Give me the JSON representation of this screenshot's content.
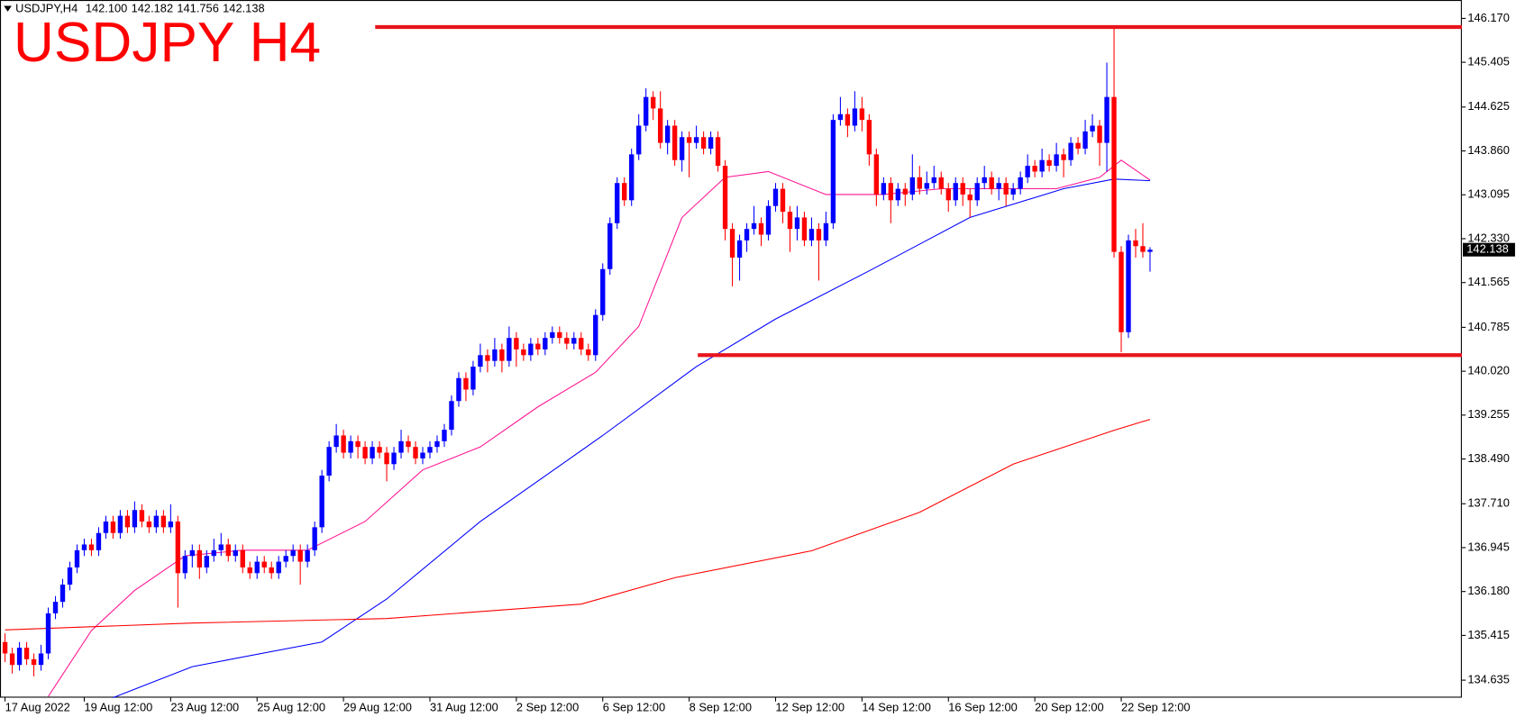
{
  "chart_data": {
    "type": "candlestick",
    "title": "USDJPY H4",
    "symbol": "USDJPY,H4",
    "last_bar": {
      "values": [
        142.1,
        142.182,
        141.756,
        142.138
      ],
      "value_labels": [
        "142.100",
        "142.182",
        "141.756",
        "142.138"
      ]
    },
    "up_color": "#0000ff",
    "down_color": "#ff0000",
    "xlim": [
      -0.7,
      202.3
    ],
    "ylim": [
      134.33,
      146.49
    ],
    "yticks": [
      {
        "value": 146.17,
        "label": "146.170"
      },
      {
        "value": 145.405,
        "label": "145.405"
      },
      {
        "value": 144.625,
        "label": "144.625"
      },
      {
        "value": 143.86,
        "label": "143.860"
      },
      {
        "value": 143.095,
        "label": "143.095"
      },
      {
        "value": 142.33,
        "label": "142.330"
      },
      {
        "value": 141.565,
        "label": "141.565"
      },
      {
        "value": 140.785,
        "label": "140.785"
      },
      {
        "value": 140.02,
        "label": "140.020"
      },
      {
        "value": 139.255,
        "label": "139.255"
      },
      {
        "value": 138.49,
        "label": "138.490"
      },
      {
        "value": 137.71,
        "label": "137.710"
      },
      {
        "value": 136.945,
        "label": "136.945"
      },
      {
        "value": 136.18,
        "label": "136.180"
      },
      {
        "value": 135.415,
        "label": "135.415"
      },
      {
        "value": 134.635,
        "label": "134.635"
      }
    ],
    "xticks": [
      {
        "value": 0,
        "label": "17 Aug 2022"
      },
      {
        "value": 11,
        "label": "19 Aug 12:00"
      },
      {
        "value": 23,
        "label": "23 Aug 12:00"
      },
      {
        "value": 35,
        "label": "25 Aug 12:00"
      },
      {
        "value": 47,
        "label": "29 Aug 12:00"
      },
      {
        "value": 59,
        "label": "31 Aug 12:00"
      },
      {
        "value": 71,
        "label": "2 Sep 12:00"
      },
      {
        "value": 83,
        "label": "6 Sep 12:00"
      },
      {
        "value": 95,
        "label": "8 Sep 12:00"
      },
      {
        "value": 107,
        "label": "12 Sep 12:00"
      },
      {
        "value": 119,
        "label": "14 Sep 12:00"
      },
      {
        "value": 131,
        "label": "16 Sep 12:00"
      },
      {
        "value": 143,
        "label": "20 Sep 12:00"
      },
      {
        "value": 155,
        "label": "22 Sep 12:00"
      }
    ],
    "candles": [
      [
        135.3,
        135.45,
        134.95,
        135.1
      ],
      [
        135.1,
        135.2,
        134.75,
        134.9
      ],
      [
        134.9,
        135.3,
        134.8,
        135.2
      ],
      [
        135.2,
        135.3,
        134.9,
        135.0
      ],
      [
        135.0,
        135.1,
        134.7,
        134.9
      ],
      [
        134.9,
        135.25,
        134.8,
        135.1
      ],
      [
        135.1,
        135.9,
        135.0,
        135.8
      ],
      [
        135.8,
        136.1,
        135.7,
        136.0
      ],
      [
        136.0,
        136.4,
        135.9,
        136.3
      ],
      [
        136.3,
        136.7,
        136.2,
        136.6
      ],
      [
        136.6,
        137.0,
        136.5,
        136.9
      ],
      [
        136.9,
        137.1,
        136.8,
        137.0
      ],
      [
        137.0,
        137.1,
        136.8,
        136.9
      ],
      [
        136.9,
        137.3,
        136.8,
        137.2
      ],
      [
        137.2,
        137.5,
        137.1,
        137.4
      ],
      [
        137.4,
        137.5,
        137.1,
        137.2
      ],
      [
        137.2,
        137.6,
        137.1,
        137.5
      ],
      [
        137.5,
        137.6,
        137.2,
        137.3
      ],
      [
        137.3,
        137.75,
        137.2,
        137.6
      ],
      [
        137.6,
        137.7,
        137.3,
        137.4
      ],
      [
        137.4,
        137.5,
        137.2,
        137.3
      ],
      [
        137.3,
        137.6,
        137.2,
        137.5
      ],
      [
        137.5,
        137.6,
        137.2,
        137.3
      ],
      [
        137.3,
        137.7,
        137.2,
        137.4
      ],
      [
        137.4,
        137.5,
        135.9,
        136.5
      ],
      [
        136.5,
        136.9,
        136.4,
        136.8
      ],
      [
        136.8,
        137.0,
        136.6,
        136.9
      ],
      [
        136.9,
        137.0,
        136.4,
        136.6
      ],
      [
        136.6,
        136.9,
        136.5,
        136.8
      ],
      [
        136.8,
        137.1,
        136.7,
        136.9
      ],
      [
        136.9,
        137.2,
        136.8,
        137.0
      ],
      [
        137.0,
        137.1,
        136.7,
        136.8
      ],
      [
        136.8,
        137.0,
        136.7,
        136.9
      ],
      [
        136.9,
        137.0,
        136.5,
        136.6
      ],
      [
        136.6,
        136.7,
        136.4,
        136.5
      ],
      [
        136.5,
        136.8,
        136.4,
        136.7
      ],
      [
        136.7,
        136.8,
        136.5,
        136.6
      ],
      [
        136.6,
        136.7,
        136.4,
        136.5
      ],
      [
        136.5,
        136.8,
        136.4,
        136.7
      ],
      [
        136.7,
        136.9,
        136.6,
        136.8
      ],
      [
        136.8,
        137.0,
        136.7,
        136.9
      ],
      [
        136.9,
        137.0,
        136.3,
        136.7
      ],
      [
        136.7,
        137.0,
        136.6,
        136.9
      ],
      [
        136.9,
        137.4,
        136.8,
        137.3
      ],
      [
        137.3,
        138.3,
        137.2,
        138.2
      ],
      [
        138.2,
        138.8,
        138.1,
        138.7
      ],
      [
        138.7,
        139.1,
        138.6,
        138.9
      ],
      [
        138.9,
        139.0,
        138.5,
        138.6
      ],
      [
        138.6,
        138.9,
        138.5,
        138.8
      ],
      [
        138.8,
        138.9,
        138.5,
        138.7
      ],
      [
        138.7,
        138.8,
        138.4,
        138.5
      ],
      [
        138.5,
        138.8,
        138.4,
        138.7
      ],
      [
        138.7,
        138.8,
        138.5,
        138.6
      ],
      [
        138.6,
        138.7,
        138.1,
        138.4
      ],
      [
        138.4,
        138.7,
        138.3,
        138.6
      ],
      [
        138.6,
        139.0,
        138.5,
        138.8
      ],
      [
        138.8,
        138.9,
        138.6,
        138.7
      ],
      [
        138.7,
        138.8,
        138.4,
        138.5
      ],
      [
        138.5,
        138.7,
        138.4,
        138.6
      ],
      [
        138.6,
        138.8,
        138.5,
        138.7
      ],
      [
        138.7,
        138.9,
        138.6,
        138.8
      ],
      [
        138.8,
        139.1,
        138.7,
        139.0
      ],
      [
        139.0,
        139.6,
        138.9,
        139.5
      ],
      [
        139.5,
        140.0,
        139.4,
        139.9
      ],
      [
        139.9,
        140.0,
        139.5,
        139.7
      ],
      [
        139.7,
        140.2,
        139.6,
        140.1
      ],
      [
        140.1,
        140.5,
        140.0,
        140.3
      ],
      [
        140.3,
        140.4,
        140.0,
        140.2
      ],
      [
        140.2,
        140.6,
        140.1,
        140.4
      ],
      [
        140.4,
        140.5,
        140.0,
        140.2
      ],
      [
        140.2,
        140.8,
        140.1,
        140.6
      ],
      [
        140.6,
        140.7,
        140.1,
        140.4
      ],
      [
        140.4,
        140.5,
        140.2,
        140.3
      ],
      [
        140.3,
        140.6,
        140.2,
        140.5
      ],
      [
        140.5,
        140.6,
        140.3,
        140.4
      ],
      [
        140.4,
        140.7,
        140.3,
        140.6
      ],
      [
        140.6,
        140.8,
        140.5,
        140.7
      ],
      [
        140.7,
        140.8,
        140.5,
        140.6
      ],
      [
        140.6,
        140.7,
        140.4,
        140.5
      ],
      [
        140.5,
        140.7,
        140.4,
        140.6
      ],
      [
        140.6,
        140.7,
        140.3,
        140.4
      ],
      [
        140.4,
        140.5,
        140.2,
        140.3
      ],
      [
        140.3,
        141.1,
        140.2,
        141.0
      ],
      [
        141.0,
        141.9,
        140.9,
        141.8
      ],
      [
        141.8,
        142.7,
        141.7,
        142.6
      ],
      [
        142.6,
        143.4,
        142.5,
        143.3
      ],
      [
        143.3,
        143.4,
        142.9,
        143.0
      ],
      [
        143.0,
        143.9,
        142.9,
        143.8
      ],
      [
        143.8,
        144.5,
        143.7,
        144.3
      ],
      [
        144.3,
        144.95,
        144.2,
        144.8
      ],
      [
        144.8,
        144.9,
        144.4,
        144.6
      ],
      [
        144.6,
        144.9,
        143.9,
        144.0
      ],
      [
        144.0,
        144.4,
        143.8,
        144.3
      ],
      [
        144.3,
        144.4,
        143.6,
        143.7
      ],
      [
        143.7,
        144.2,
        143.5,
        144.1
      ],
      [
        144.1,
        144.2,
        143.4,
        144.0
      ],
      [
        144.0,
        144.3,
        143.9,
        144.1
      ],
      [
        144.1,
        144.2,
        143.8,
        143.9
      ],
      [
        143.9,
        144.2,
        143.8,
        144.1
      ],
      [
        144.1,
        144.2,
        143.5,
        143.6
      ],
      [
        143.6,
        143.7,
        142.3,
        142.5
      ],
      [
        142.5,
        142.6,
        141.5,
        142.0
      ],
      [
        142.0,
        142.4,
        141.6,
        142.3
      ],
      [
        142.3,
        142.6,
        142.1,
        142.5
      ],
      [
        142.5,
        142.9,
        142.4,
        142.6
      ],
      [
        142.6,
        142.7,
        142.2,
        142.4
      ],
      [
        142.4,
        143.0,
        142.3,
        142.9
      ],
      [
        142.9,
        143.3,
        142.8,
        143.2
      ],
      [
        143.2,
        143.3,
        142.6,
        142.8
      ],
      [
        142.8,
        142.9,
        142.1,
        142.5
      ],
      [
        142.5,
        142.9,
        142.3,
        142.7
      ],
      [
        142.7,
        142.8,
        142.2,
        142.3
      ],
      [
        142.3,
        142.7,
        142.2,
        142.5
      ],
      [
        142.5,
        142.6,
        141.6,
        142.3
      ],
      [
        142.3,
        142.8,
        142.2,
        142.6
      ],
      [
        142.6,
        144.5,
        142.5,
        144.4
      ],
      [
        144.4,
        144.8,
        144.3,
        144.5
      ],
      [
        144.5,
        144.6,
        144.1,
        144.3
      ],
      [
        144.3,
        144.9,
        144.2,
        144.6
      ],
      [
        144.6,
        144.8,
        144.2,
        144.4
      ],
      [
        144.4,
        144.5,
        143.6,
        143.8
      ],
      [
        143.8,
        143.9,
        142.9,
        143.1
      ],
      [
        143.1,
        143.4,
        143.0,
        143.3
      ],
      [
        143.3,
        143.4,
        142.6,
        143.0
      ],
      [
        143.0,
        143.3,
        142.9,
        143.2
      ],
      [
        143.2,
        143.3,
        142.9,
        143.1
      ],
      [
        143.1,
        143.8,
        143.0,
        143.4
      ],
      [
        143.4,
        143.6,
        143.1,
        143.2
      ],
      [
        143.2,
        143.5,
        143.1,
        143.3
      ],
      [
        143.3,
        143.6,
        143.2,
        143.4
      ],
      [
        143.4,
        143.5,
        143.1,
        143.2
      ],
      [
        143.2,
        143.3,
        142.8,
        143.0
      ],
      [
        143.0,
        143.4,
        142.9,
        143.3
      ],
      [
        143.3,
        143.4,
        142.9,
        143.1
      ],
      [
        143.1,
        143.2,
        142.7,
        143.0
      ],
      [
        143.0,
        143.4,
        142.9,
        143.3
      ],
      [
        143.3,
        143.6,
        143.2,
        143.4
      ],
      [
        143.4,
        143.5,
        143.1,
        143.2
      ],
      [
        143.2,
        143.4,
        143.0,
        143.3
      ],
      [
        143.3,
        143.4,
        142.9,
        143.1
      ],
      [
        143.1,
        143.3,
        143.0,
        143.2
      ],
      [
        143.2,
        143.5,
        143.1,
        143.4
      ],
      [
        143.4,
        143.8,
        143.3,
        143.6
      ],
      [
        143.6,
        143.7,
        143.4,
        143.5
      ],
      [
        143.5,
        143.9,
        143.4,
        143.7
      ],
      [
        143.7,
        143.8,
        143.5,
        143.6
      ],
      [
        143.6,
        144.0,
        143.5,
        143.8
      ],
      [
        143.8,
        143.9,
        143.4,
        143.7
      ],
      [
        143.7,
        144.1,
        143.6,
        144.0
      ],
      [
        144.0,
        144.1,
        143.8,
        143.9
      ],
      [
        143.9,
        144.4,
        143.8,
        144.2
      ],
      [
        144.2,
        144.5,
        144.1,
        144.3
      ],
      [
        144.3,
        144.4,
        143.6,
        144.0
      ],
      [
        144.0,
        145.4,
        143.5,
        144.8
      ],
      [
        144.8,
        146.0,
        142.0,
        142.1
      ],
      [
        142.1,
        142.2,
        140.35,
        140.7
      ],
      [
        140.7,
        142.4,
        140.6,
        142.3
      ],
      [
        142.3,
        142.5,
        142.0,
        142.2
      ],
      [
        142.2,
        142.6,
        142.0,
        142.1
      ],
      [
        142.1,
        142.182,
        141.756,
        142.138
      ]
    ],
    "lines": [
      {
        "color": "#ff1493",
        "x": [
          6,
          12,
          18,
          25,
          33,
          42,
          50,
          58,
          66,
          74,
          82,
          88,
          94,
          100,
          106,
          114,
          122,
          130,
          138,
          146,
          152,
          155,
          159
        ],
        "values": [
          134.35,
          135.5,
          136.2,
          136.8,
          136.9,
          136.9,
          137.4,
          138.3,
          138.7,
          139.4,
          140.0,
          140.8,
          142.7,
          143.4,
          143.5,
          143.1,
          143.1,
          143.2,
          143.2,
          143.2,
          143.4,
          143.7,
          143.35
        ]
      },
      {
        "color": "#0000ff",
        "x": [
          15,
          26,
          44,
          53,
          66,
          83,
          96,
          107,
          120,
          134,
          147,
          154,
          159
        ],
        "values": [
          134.33,
          134.87,
          135.3,
          136.05,
          137.4,
          138.9,
          140.1,
          140.93,
          141.77,
          142.7,
          143.2,
          143.37,
          143.34
        ]
      },
      {
        "color": "#ff0000",
        "x": [
          0,
          26,
          53,
          80,
          93,
          112,
          127,
          140,
          154,
          159
        ],
        "values": [
          135.51,
          135.63,
          135.71,
          135.96,
          136.42,
          136.89,
          137.56,
          138.4,
          138.99,
          139.18
        ]
      }
    ],
    "levels": [
      {
        "value": 146.02,
        "x_start": 51.4,
        "color": "#e8141c"
      },
      {
        "value": 140.3,
        "x_start": 96.2,
        "color": "#e8141c"
      }
    ]
  }
}
